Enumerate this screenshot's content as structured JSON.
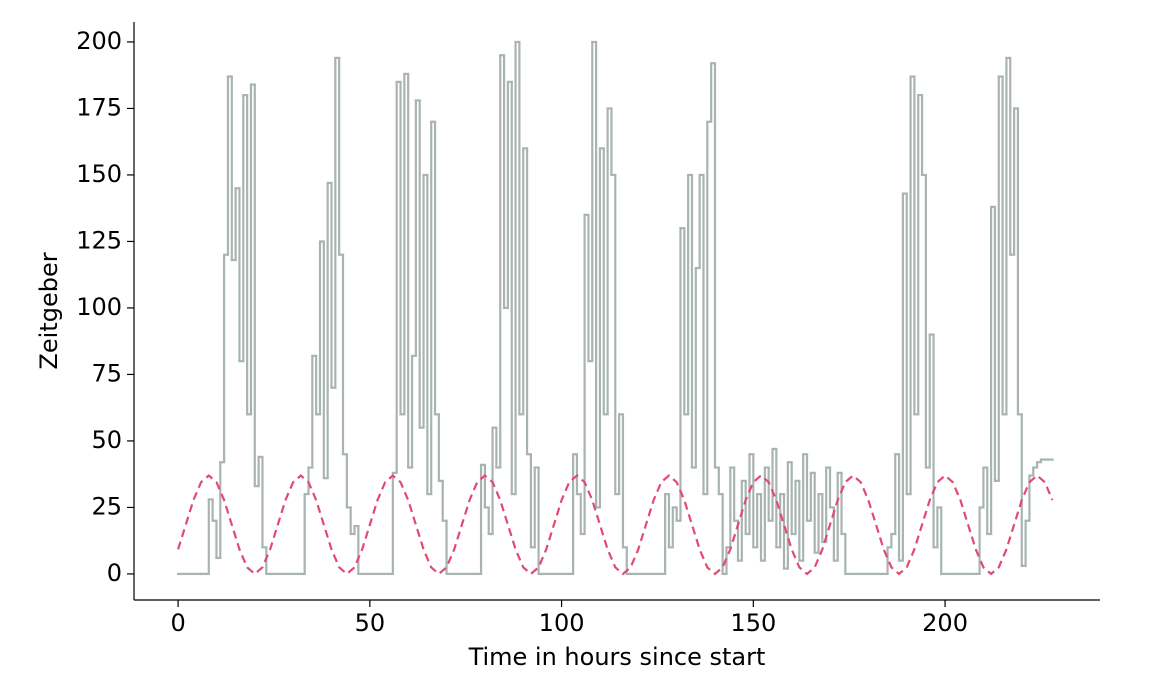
{
  "chart_data": {
    "type": "line",
    "xlabel": "Time in hours since start",
    "ylabel": "Zeitgeber",
    "xlim": [
      -11.5,
      240.4
    ],
    "xticks": [
      0,
      50,
      100,
      150,
      200
    ],
    "ylim": [
      -9.8,
      207.5
    ],
    "yticks": [
      0,
      25,
      50,
      75,
      100,
      125,
      150,
      175,
      200
    ],
    "grid": false,
    "series": [
      {
        "color": "#a9b4b2",
        "drawstyle": "steps-post",
        "linestyle": "solid",
        "x": [
          0,
          1,
          2,
          3,
          4,
          5,
          6,
          7,
          8,
          9,
          10,
          11,
          12,
          13,
          14,
          15,
          16,
          17,
          18,
          19,
          20,
          21,
          22,
          23,
          24,
          25,
          26,
          27,
          28,
          29,
          30,
          31,
          32,
          33,
          34,
          35,
          36,
          37,
          38,
          39,
          40,
          41,
          42,
          43,
          44,
          45,
          46,
          47,
          48,
          49,
          50,
          51,
          52,
          53,
          54,
          55,
          56,
          57,
          58,
          59,
          60,
          61,
          62,
          63,
          64,
          65,
          66,
          67,
          68,
          69,
          70,
          71,
          72,
          73,
          74,
          75,
          76,
          77,
          78,
          79,
          80,
          81,
          82,
          83,
          84,
          85,
          86,
          87,
          88,
          89,
          90,
          91,
          92,
          93,
          94,
          95,
          96,
          97,
          98,
          99,
          100,
          101,
          102,
          103,
          104,
          105,
          106,
          107,
          108,
          109,
          110,
          111,
          112,
          113,
          114,
          115,
          116,
          117,
          118,
          119,
          120,
          121,
          122,
          123,
          124,
          125,
          126,
          127,
          128,
          129,
          130,
          131,
          132,
          133,
          134,
          135,
          136,
          137,
          138,
          139,
          140,
          141,
          142,
          143,
          144,
          145,
          146,
          147,
          148,
          149,
          150,
          151,
          152,
          153,
          154,
          155,
          156,
          157,
          158,
          159,
          160,
          161,
          162,
          163,
          164,
          165,
          166,
          167,
          168,
          169,
          170,
          171,
          172,
          173,
          174,
          175,
          176,
          177,
          178,
          179,
          180,
          181,
          182,
          183,
          184,
          185,
          186,
          187,
          188,
          189,
          190,
          191,
          192,
          193,
          194,
          195,
          196,
          197,
          198,
          199,
          200,
          201,
          202,
          203,
          204,
          205,
          206,
          207,
          208,
          209,
          210,
          211,
          212,
          213,
          214,
          215,
          216,
          217,
          218,
          219,
          220,
          221,
          222,
          223,
          224,
          225,
          226,
          227,
          228
        ],
        "values": [
          0,
          0,
          0,
          0,
          0,
          0,
          0,
          0,
          28,
          20,
          6,
          42,
          120,
          187,
          118,
          145,
          80,
          180,
          60,
          184,
          33,
          44,
          10,
          0,
          0,
          0,
          0,
          0,
          0,
          0,
          0,
          0,
          0,
          30,
          40,
          82,
          60,
          125,
          36,
          147,
          70,
          194,
          120,
          45,
          25,
          15,
          18,
          0,
          0,
          0,
          0,
          0,
          0,
          0,
          0,
          0,
          38,
          185,
          60,
          188,
          40,
          82,
          178,
          55,
          150,
          30,
          170,
          60,
          35,
          20,
          0,
          0,
          0,
          0,
          0,
          0,
          0,
          0,
          0,
          41,
          25,
          15,
          55,
          40,
          195,
          100,
          185,
          30,
          200,
          60,
          160,
          45,
          10,
          40,
          0,
          0,
          0,
          0,
          0,
          0,
          0,
          0,
          0,
          45,
          30,
          15,
          135,
          80,
          200,
          25,
          160,
          60,
          175,
          150,
          30,
          60,
          10,
          0,
          0,
          0,
          0,
          0,
          0,
          0,
          0,
          0,
          0,
          30,
          10,
          25,
          20,
          130,
          60,
          150,
          40,
          115,
          150,
          30,
          170,
          192,
          40,
          30,
          0,
          10,
          40,
          20,
          5,
          35,
          15,
          45,
          10,
          30,
          5,
          40,
          20,
          47,
          10,
          30,
          2,
          42,
          15,
          35,
          5,
          45,
          20,
          38,
          8,
          30,
          12,
          40,
          25,
          5,
          38,
          15,
          0,
          0,
          0,
          0,
          0,
          0,
          0,
          0,
          0,
          0,
          0,
          10,
          15,
          45,
          5,
          143,
          30,
          187,
          60,
          180,
          150,
          40,
          90,
          10,
          25,
          0,
          0,
          0,
          0,
          0,
          0,
          0,
          0,
          0,
          0,
          25,
          40,
          15,
          138,
          35,
          187,
          60,
          194,
          120,
          175,
          60,
          3,
          20,
          37,
          40,
          42,
          43,
          43,
          43,
          43
        ]
      },
      {
        "color": "#e34a6f",
        "drawstyle": "default",
        "linestyle": "dashed",
        "x": [
          0,
          2,
          4,
          6,
          8,
          10,
          12,
          14,
          16,
          18,
          20,
          22,
          24,
          26,
          28,
          30,
          32,
          34,
          36,
          38,
          40,
          42,
          44,
          46,
          48,
          50,
          52,
          54,
          56,
          58,
          60,
          62,
          64,
          66,
          68,
          70,
          72,
          74,
          76,
          78,
          80,
          82,
          84,
          86,
          88,
          90,
          92,
          94,
          96,
          98,
          100,
          102,
          104,
          106,
          108,
          110,
          112,
          114,
          116,
          118,
          120,
          122,
          124,
          126,
          128,
          130,
          132,
          134,
          136,
          138,
          140,
          142,
          144,
          146,
          148,
          150,
          152,
          154,
          156,
          158,
          160,
          162,
          164,
          166,
          168,
          170,
          172,
          174,
          176,
          178,
          180,
          182,
          184,
          186,
          188,
          190,
          192,
          194,
          196,
          198,
          200,
          202,
          204,
          206,
          208,
          210,
          212,
          214,
          216,
          218,
          220,
          222,
          224,
          226,
          228
        ],
        "values": [
          9.25,
          18.5,
          27.75,
          34.52,
          37,
          34.52,
          27.75,
          18.5,
          9.25,
          2.48,
          0,
          2.48,
          9.25,
          18.5,
          27.75,
          34.52,
          37,
          34.52,
          27.75,
          18.5,
          9.25,
          2.48,
          0,
          2.48,
          9.25,
          18.5,
          27.75,
          34.52,
          37,
          34.52,
          27.75,
          18.5,
          9.25,
          2.48,
          0,
          2.48,
          9.25,
          18.5,
          27.75,
          34.52,
          37,
          34.52,
          27.75,
          18.5,
          9.25,
          2.48,
          0,
          2.48,
          9.25,
          18.5,
          27.75,
          34.52,
          37,
          34.52,
          27.75,
          18.5,
          9.25,
          2.48,
          0,
          2.48,
          9.25,
          18.5,
          27.75,
          34.52,
          37,
          34.52,
          27.75,
          18.5,
          9.25,
          2.48,
          0,
          2.48,
          9.25,
          18.5,
          27.75,
          34.52,
          37,
          34.52,
          27.75,
          18.5,
          9.25,
          2.48,
          0,
          2.48,
          9.25,
          18.5,
          27.75,
          34.52,
          37,
          34.52,
          27.75,
          18.5,
          9.25,
          2.48,
          0,
          2.48,
          9.25,
          18.5,
          27.75,
          34.52,
          37,
          34.52,
          27.75,
          18.5,
          9.25,
          2.48,
          0,
          2.48,
          9.25,
          18.5,
          27.75,
          34.52,
          37,
          34.52,
          27.75
        ]
      }
    ]
  }
}
